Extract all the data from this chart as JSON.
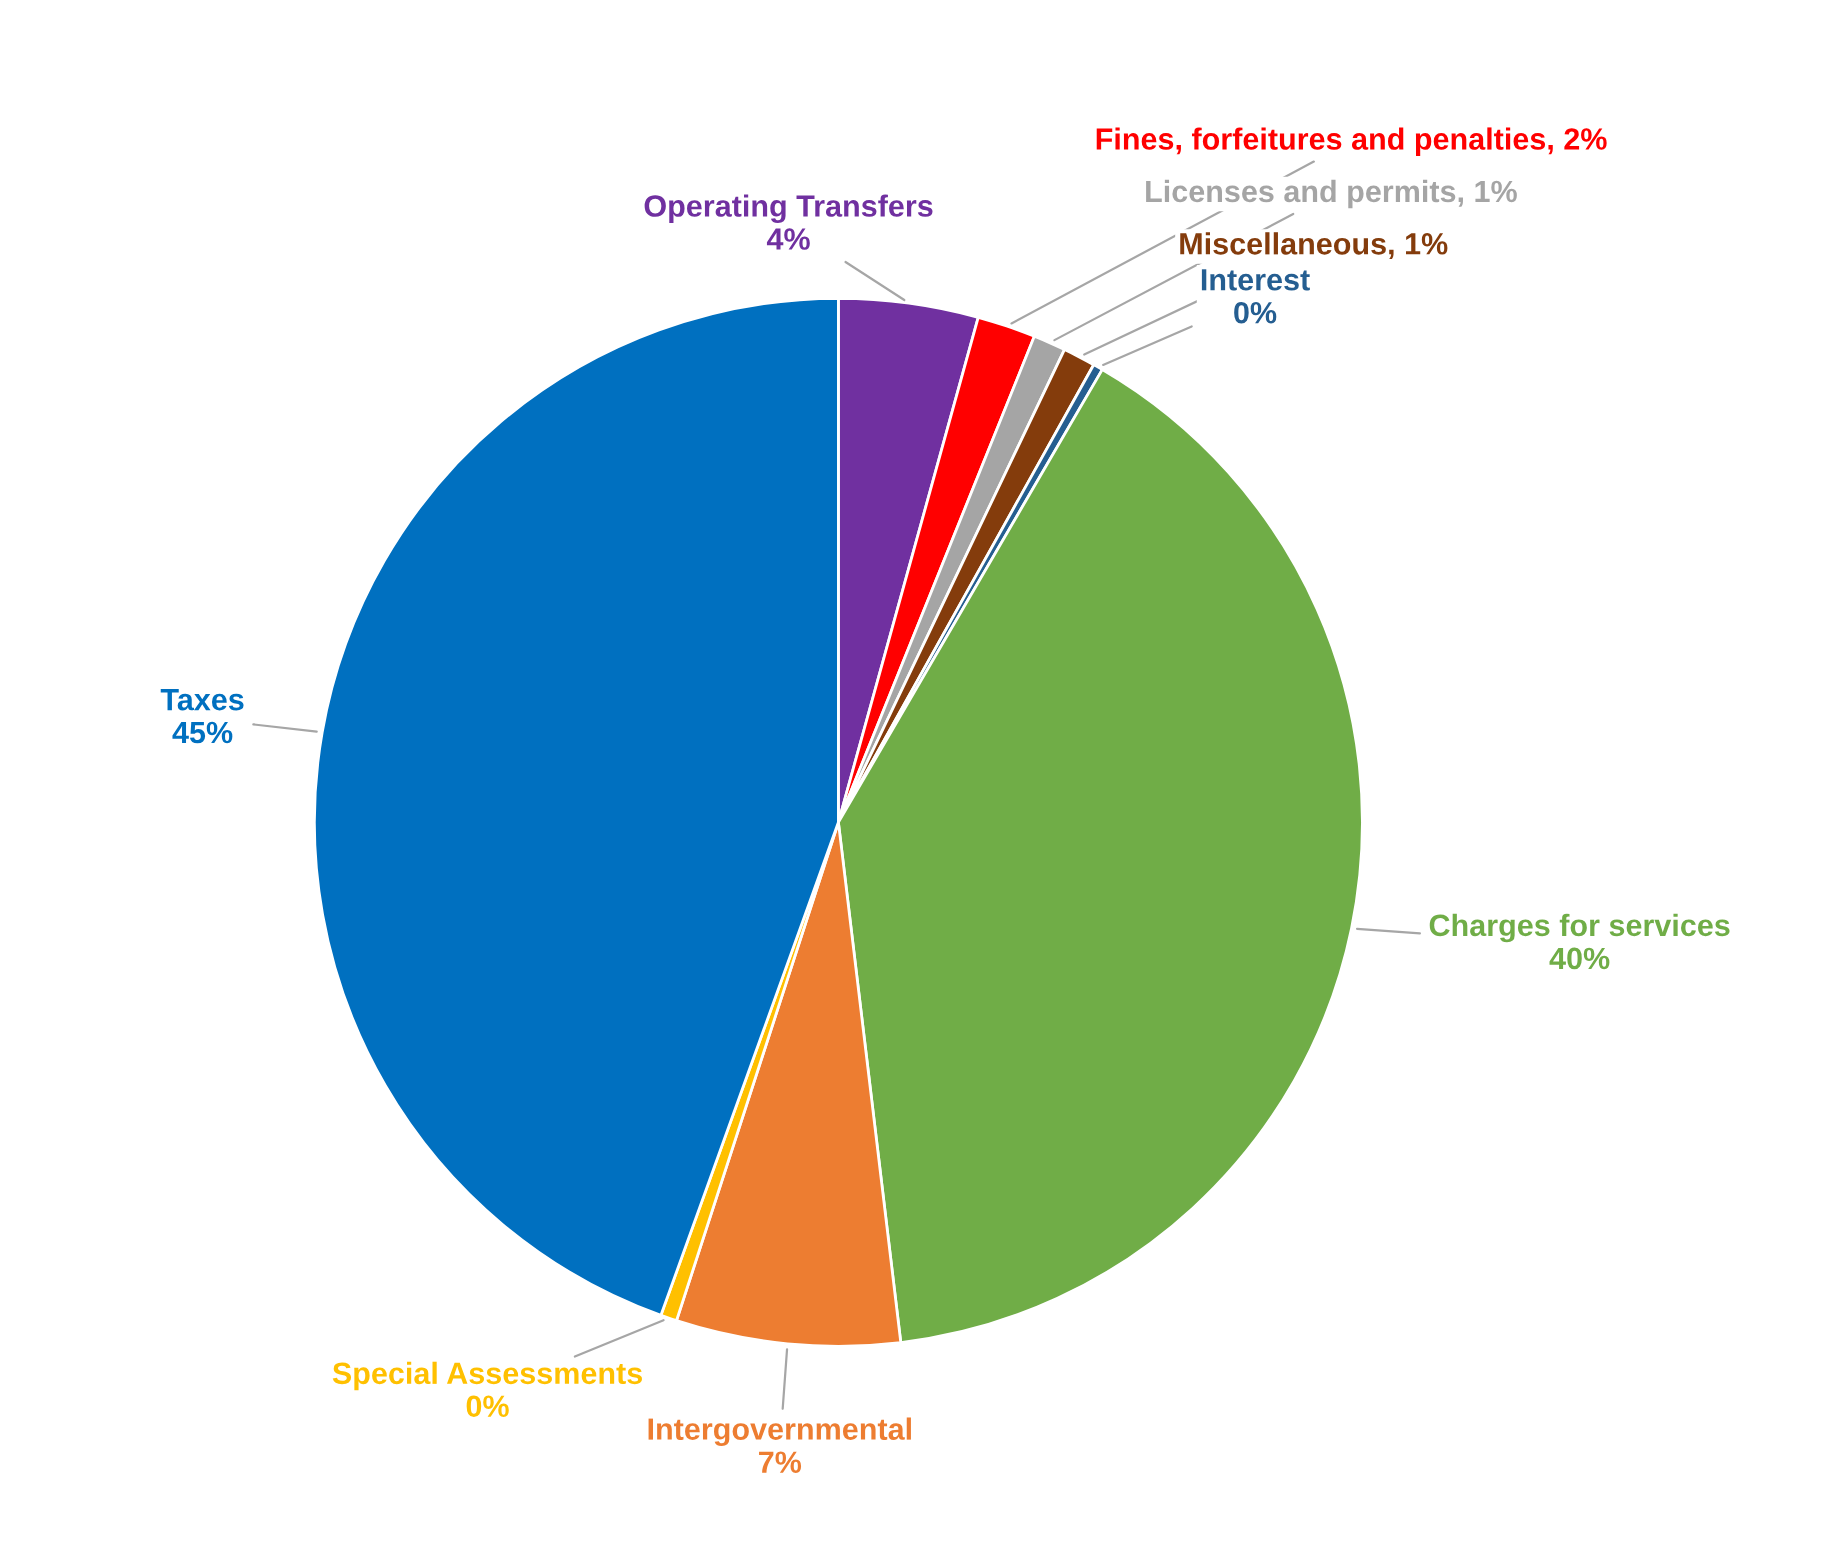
{
  "chart_data": {
    "type": "pie",
    "categories": [
      "Operating Transfers",
      "Fines, forfeitures and penalties",
      "Licenses and permits",
      "Miscellaneous",
      "Interest",
      "Charges for services",
      "Intergovernmental",
      "Special Assessments",
      "Taxes"
    ],
    "values": [
      4.3,
      1.8,
      1.0,
      1.0,
      0.3,
      39.7,
      6.9,
      0.5,
      44.5
    ],
    "value_labels": [
      "4%",
      "2%",
      "1%",
      "1%",
      "0%",
      "40%",
      "7%",
      "0%",
      "45%"
    ],
    "colors": [
      "#7030a0",
      "#ff0000",
      "#a5a5a5",
      "#843c0c",
      "#255e91",
      "#70ad47",
      "#ed7d31",
      "#ffc000",
      "#0070c0"
    ],
    "legend": false
  }
}
